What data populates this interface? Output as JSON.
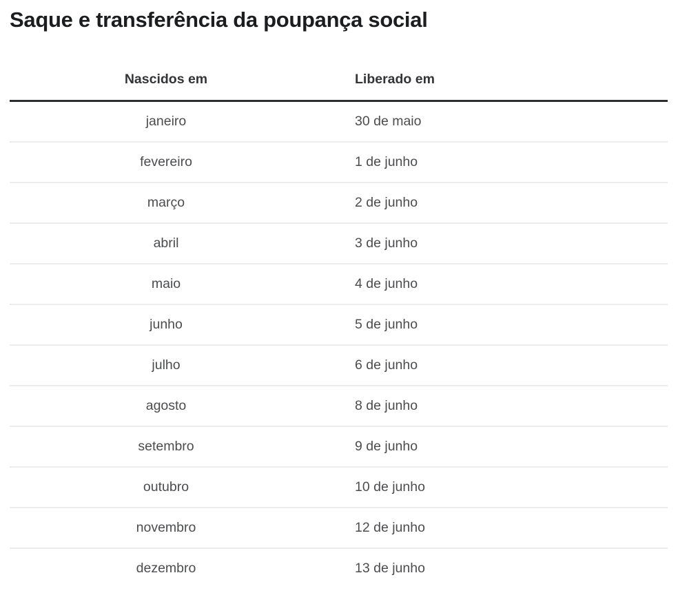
{
  "chart_data": {
    "type": "table",
    "title": "Saque e transferência da poupança social",
    "columns": [
      "Nascidos em",
      "Liberado em"
    ],
    "rows": [
      [
        "janeiro",
        "30 de maio"
      ],
      [
        "fevereiro",
        "1 de junho"
      ],
      [
        "março",
        "2 de junho"
      ],
      [
        "abril",
        "3 de junho"
      ],
      [
        "maio",
        "4 de junho"
      ],
      [
        "junho",
        "5 de junho"
      ],
      [
        "julho",
        "6 de junho"
      ],
      [
        "agosto",
        "8 de junho"
      ],
      [
        "setembro",
        "9 de junho"
      ],
      [
        "outubro",
        "10 de junho"
      ],
      [
        "novembro",
        "12 de junho"
      ],
      [
        "dezembro",
        "13 de junho"
      ]
    ],
    "layout_hints": {
      "column_alignments": [
        "center",
        "left"
      ],
      "header_rule": "thick-dark",
      "row_divider": "thin-light"
    }
  },
  "colors": {
    "background": "#ffffff",
    "title_text": "#1c1d1f",
    "header_text": "#333436",
    "cell_text": "#4b4c4e",
    "header_rule": "#2b2c2e",
    "row_divider": "#ececec"
  }
}
